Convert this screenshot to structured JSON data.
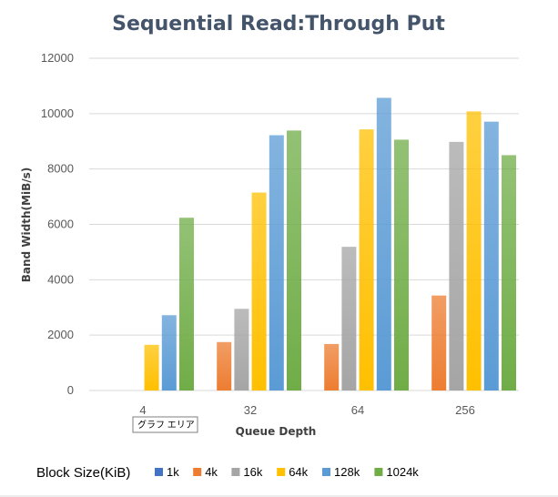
{
  "chart_data": {
    "type": "bar",
    "title": "Sequential Read:Through Put",
    "xlabel": "Queue Depth",
    "ylabel": "Band Width(MiB/s)",
    "ylim": [
      0,
      12000
    ],
    "yticks": [
      0,
      2000,
      4000,
      6000,
      8000,
      10000,
      12000
    ],
    "grid": true,
    "legend_position": "bottom",
    "legend_title": "Block Size(KiB)",
    "categories": [
      "4",
      "32",
      "64",
      "256"
    ],
    "series": [
      {
        "name": "1k",
        "color": "#4472c4",
        "values": [
          0,
          0,
          0,
          0
        ]
      },
      {
        "name": "4k",
        "color": "#ed7d31",
        "values": [
          0,
          1750,
          1680,
          3430
        ]
      },
      {
        "name": "16k",
        "color": "#a5a5a5",
        "values": [
          0,
          2950,
          5190,
          8980
        ]
      },
      {
        "name": "64k",
        "color": "#ffc000",
        "values": [
          1650,
          7150,
          9430,
          10080
        ]
      },
      {
        "name": "128k",
        "color": "#5b9bd5",
        "values": [
          2720,
          9220,
          10570,
          9710
        ]
      },
      {
        "name": "1024k",
        "color": "#70ad47",
        "values": [
          6240,
          9390,
          9060,
          8500
        ]
      }
    ]
  },
  "tooltip": {
    "text": "グラフ エリア"
  }
}
